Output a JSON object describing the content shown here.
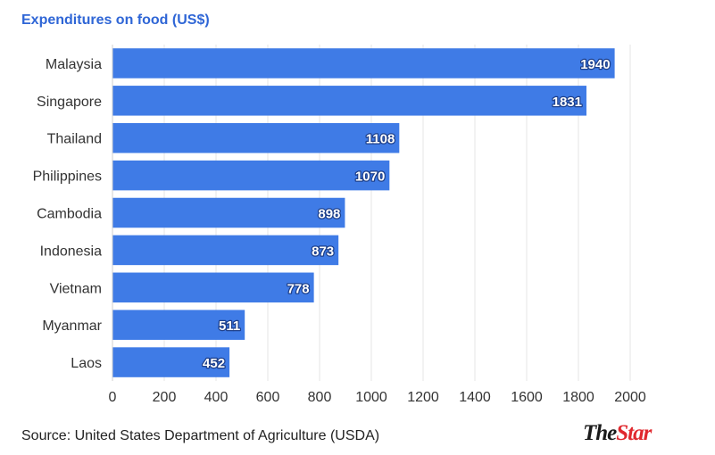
{
  "chart_data": {
    "type": "bar",
    "orientation": "horizontal",
    "title": "Expenditures on food (US$)",
    "categories": [
      "Malaysia",
      "Singapore",
      "Thailand",
      "Philippines",
      "Cambodia",
      "Indonesia",
      "Vietnam",
      "Myanmar",
      "Laos"
    ],
    "values": [
      1940,
      1831,
      1108,
      1070,
      898,
      873,
      778,
      511,
      452
    ],
    "xlim": [
      0,
      2000
    ],
    "xticks": [
      0,
      200,
      400,
      600,
      800,
      1000,
      1200,
      1400,
      1600,
      1800,
      2000
    ],
    "grid": true,
    "data_labels": true,
    "bar_color": "#3f7be6",
    "label_stroke_color": "#1d3f8a"
  },
  "footer": {
    "source": "Source: United States Department of Agriculture (USDA)",
    "logo_prefix": "The",
    "logo_suffix": "Star",
    "logo_accent_color": "#e0282e"
  }
}
